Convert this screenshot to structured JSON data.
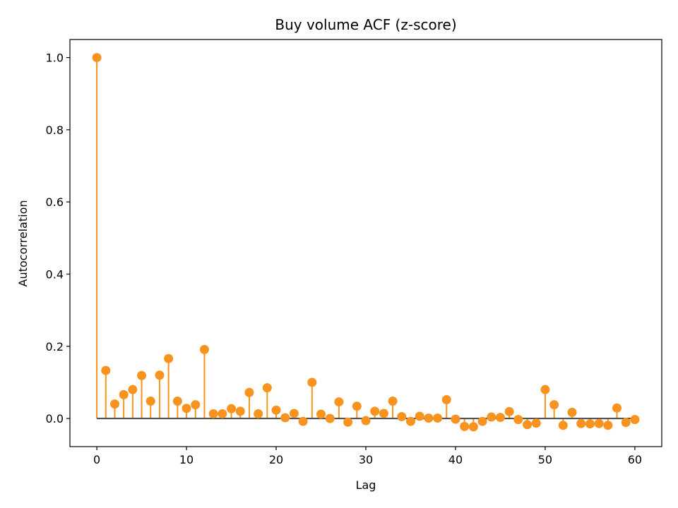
{
  "chart_data": {
    "type": "stem",
    "title": "Buy volume ACF (z-score)",
    "xlabel": "Lag",
    "ylabel": "Autocorrelation",
    "xlim": [
      -3,
      63
    ],
    "ylim": [
      -0.078,
      1.05
    ],
    "xticks": [
      0,
      10,
      20,
      30,
      40,
      50,
      60
    ],
    "xtick_labels": [
      "0",
      "10",
      "20",
      "30",
      "40",
      "50",
      "60"
    ],
    "yticks": [
      0.0,
      0.2,
      0.4,
      0.6,
      0.8,
      1.0
    ],
    "ytick_labels": [
      "0.0",
      "0.2",
      "0.4",
      "0.6",
      "0.8",
      "1.0"
    ],
    "grid": false,
    "marker_color": "#f7931e",
    "baseline_color": "#444444",
    "series": [
      {
        "x": [
          0,
          1,
          2,
          3,
          4,
          5,
          6,
          7,
          8,
          9,
          10,
          11,
          12,
          13,
          14,
          15,
          16,
          17,
          18,
          19,
          20,
          21,
          22,
          23,
          24,
          25,
          26,
          27,
          28,
          29,
          30,
          31,
          32,
          33,
          34,
          35,
          36,
          37,
          38,
          39,
          40,
          41,
          42,
          43,
          44,
          45,
          46,
          47,
          48,
          49,
          50,
          51,
          52,
          53,
          54,
          55,
          56,
          57,
          58,
          59,
          60
        ],
        "values": [
          1.0,
          0.133,
          0.04,
          0.066,
          0.08,
          0.119,
          0.048,
          0.12,
          0.166,
          0.048,
          0.028,
          0.038,
          0.191,
          0.013,
          0.013,
          0.027,
          0.02,
          0.072,
          0.013,
          0.085,
          0.023,
          0.002,
          0.014,
          -0.008,
          0.1,
          0.012,
          0.0,
          0.046,
          -0.01,
          0.034,
          -0.006,
          0.02,
          0.014,
          0.048,
          0.005,
          -0.008,
          0.006,
          0.001,
          0.001,
          0.052,
          -0.002,
          -0.022,
          -0.023,
          -0.008,
          0.004,
          0.003,
          0.019,
          -0.003,
          -0.017,
          -0.013,
          0.08,
          0.038,
          -0.019,
          0.017,
          -0.014,
          -0.015,
          -0.014,
          -0.019,
          0.029,
          -0.011,
          -0.003
        ]
      }
    ]
  }
}
